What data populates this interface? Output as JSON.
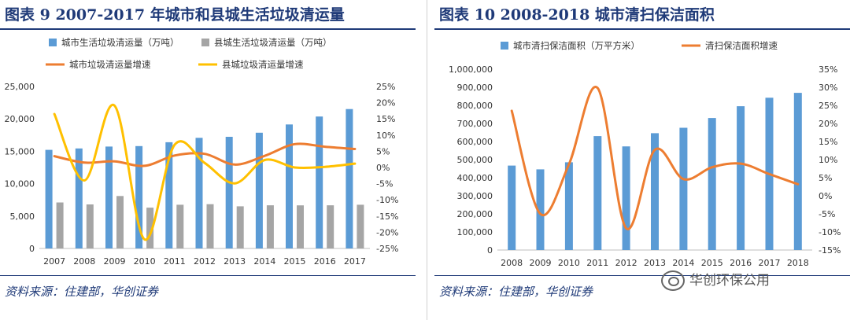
{
  "left": {
    "title": "图表 9   2007-2017 年城市和县城生活垃圾清运量",
    "source": "资料来源：住建部，华创证券"
  },
  "right": {
    "title": "图表 10   2008-2018 城市清扫保洁面积",
    "source": "资料来源：住建部，华创证券"
  },
  "watermark": {
    "text": "华创环保公用",
    "icon": "wechat-icon"
  },
  "colors": {
    "blue": "#5b9bd5",
    "gray": "#a5a5a5",
    "orange": "#ed7d31",
    "yellow": "#ffc000",
    "title": "#1f3a78"
  },
  "chart_data": [
    {
      "type": "bar",
      "categories": [
        "2007",
        "2008",
        "2009",
        "2010",
        "2011",
        "2012",
        "2013",
        "2014",
        "2015",
        "2016",
        "2017"
      ],
      "series": [
        {
          "name": "城市生活垃圾清运量（万吨）",
          "kind": "bar",
          "axis": "left",
          "values": [
            15215,
            15438,
            15734,
            15805,
            16395,
            17081,
            17239,
            17860,
            19142,
            20362,
            21521
          ]
        },
        {
          "name": "县城生活垃圾清运量（万吨）",
          "kind": "bar",
          "axis": "left",
          "values": [
            7100,
            6800,
            8100,
            6300,
            6743,
            6838,
            6506,
            6657,
            6655,
            6666,
            6747
          ]
        },
        {
          "name": "城市垃圾清运量增速",
          "kind": "line",
          "axis": "right",
          "values": [
            3.5,
            1.5,
            1.9,
            0.5,
            3.7,
            4.2,
            0.9,
            3.6,
            7.2,
            6.4,
            5.7
          ]
        },
        {
          "name": "县城垃圾清运量增速",
          "kind": "line",
          "axis": "right",
          "values": [
            16.5,
            -4.0,
            19.1,
            -22.2,
            7.0,
            1.4,
            -4.9,
            2.3,
            0.0,
            0.2,
            1.2
          ]
        }
      ],
      "y_left": {
        "min": 0,
        "max": 25000,
        "ticks": [
          "25,000",
          "20,000",
          "15,000",
          "10,000",
          "5,000",
          "0"
        ]
      },
      "y_right": {
        "min": -25,
        "max": 25,
        "ticks": [
          "25%",
          "20%",
          "15%",
          "10%",
          "5%",
          "0%",
          "-5%",
          "-10%",
          "-15%",
          "-20%",
          "-25%"
        ]
      },
      "legend": "top"
    },
    {
      "type": "bar",
      "categories": [
        "2008",
        "2009",
        "2010",
        "2011",
        "2012",
        "2013",
        "2014",
        "2015",
        "2016",
        "2017",
        "2018"
      ],
      "series": [
        {
          "name": "城市清扫保洁面积（万平方米）",
          "kind": "bar",
          "axis": "left",
          "values": [
            467000,
            446000,
            485000,
            630000,
            573000,
            646000,
            676000,
            730000,
            795000,
            842000,
            869000
          ]
        },
        {
          "name": "清扫保洁面积增速",
          "kind": "line",
          "axis": "right",
          "values": [
            23.5,
            -5.0,
            8.7,
            29.8,
            -9.0,
            12.7,
            4.6,
            7.9,
            8.9,
            6.0,
            3.2
          ]
        }
      ],
      "y_left": {
        "min": 0,
        "max": 1000000,
        "ticks": [
          "1,000,000",
          "900,000",
          "800,000",
          "700,000",
          "600,000",
          "500,000",
          "400,000",
          "300,000",
          "200,000",
          "100,000",
          "0"
        ]
      },
      "y_right": {
        "min": -15,
        "max": 35,
        "ticks": [
          "35%",
          "30%",
          "25%",
          "20%",
          "15%",
          "10%",
          "5%",
          "0%",
          "-5%",
          "-10%",
          "-15%"
        ]
      },
      "legend": "top"
    }
  ]
}
